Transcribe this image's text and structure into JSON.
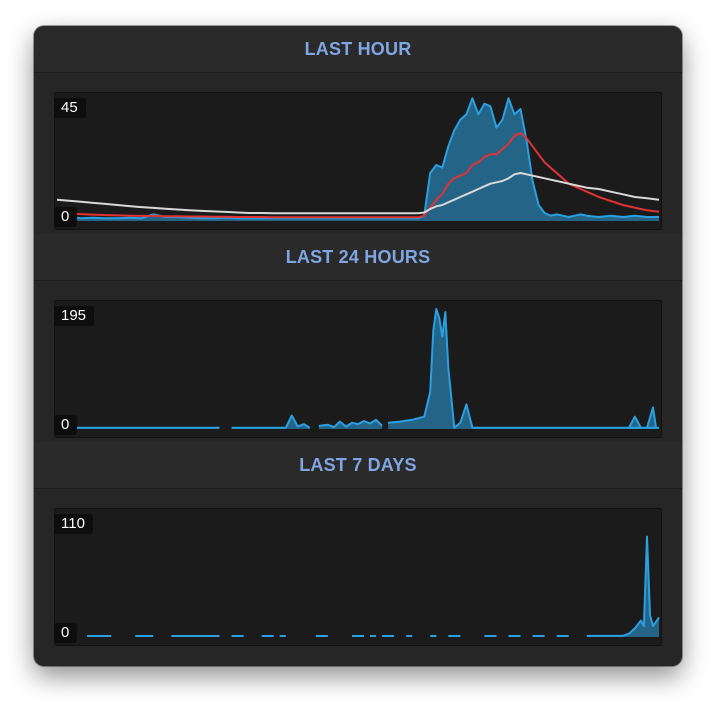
{
  "chart_data": [
    {
      "type": "area",
      "title": "LAST HOUR",
      "ylim": [
        0,
        45
      ],
      "y_labels": {
        "max": "45",
        "min": "0"
      },
      "x": [
        0,
        2,
        4,
        6,
        8,
        10,
        12,
        14,
        16,
        18,
        20,
        22,
        24,
        26,
        28,
        30,
        32,
        34,
        36,
        38,
        40,
        42,
        44,
        46,
        48,
        50,
        52,
        54,
        56,
        58,
        60,
        61,
        62,
        63,
        64,
        65,
        66,
        67,
        68,
        69,
        70,
        71,
        72,
        73,
        74,
        75,
        76,
        77,
        78,
        79,
        80,
        81,
        82,
        83,
        84,
        85,
        86,
        87,
        88,
        90,
        92,
        94,
        96,
        98,
        100
      ],
      "series": [
        {
          "color": "#2aa0e0",
          "values": [
            1,
            1.5,
            1,
            1.2,
            1,
            1,
            1.2,
            1,
            2.5,
            1.5,
            1.5,
            1.2,
            1,
            1,
            1.2,
            1,
            1,
            1,
            1,
            1,
            1,
            1,
            1,
            1,
            1,
            1,
            1,
            1,
            1,
            1,
            1,
            2,
            18,
            21,
            20,
            28,
            34,
            38,
            40,
            46,
            40,
            44,
            43,
            35,
            38,
            46,
            40,
            42,
            30,
            15,
            6,
            3,
            2,
            2.5,
            2,
            1.5,
            2,
            2.5,
            2,
            1.5,
            2,
            1.5,
            2,
            1.5,
            1.5
          ]
        },
        {
          "color": "#e03333",
          "values": [
            3,
            2.8,
            2.6,
            2.4,
            2.2,
            2.1,
            2,
            1.9,
            1.9,
            1.8,
            1.8,
            1.7,
            1.7,
            1.6,
            1.6,
            1.5,
            1.5,
            1.5,
            1.4,
            1.4,
            1.4,
            1.4,
            1.4,
            1.4,
            1.4,
            1.4,
            1.4,
            1.4,
            1.4,
            1.4,
            1.4,
            2,
            5,
            8,
            10,
            14,
            16,
            17,
            18,
            21,
            22,
            24,
            25,
            25,
            27,
            29,
            32,
            33,
            31,
            28,
            25,
            22,
            20,
            18,
            16,
            14,
            13,
            12,
            11,
            9,
            7.5,
            6,
            5,
            4,
            3.5
          ]
        },
        {
          "color": "#d8d8d8",
          "values": [
            8,
            7.6,
            7.2,
            6.8,
            6.4,
            6,
            5.6,
            5.2,
            4.9,
            4.6,
            4.3,
            4,
            3.8,
            3.6,
            3.4,
            3.2,
            3,
            3,
            2.9,
            2.9,
            2.9,
            2.9,
            2.9,
            2.9,
            2.9,
            2.9,
            2.9,
            2.9,
            2.9,
            2.9,
            2.9,
            3.2,
            4.5,
            5.5,
            6,
            7,
            8,
            9,
            10,
            11,
            12,
            13,
            14,
            14.5,
            15,
            16,
            17.5,
            18,
            17.5,
            17,
            16.5,
            16,
            15.5,
            15,
            14.5,
            14,
            13.5,
            13,
            12.5,
            12,
            11,
            10,
            9,
            8.5,
            8
          ]
        }
      ]
    },
    {
      "type": "area",
      "title": "LAST 24 HOURS",
      "ylim": [
        0,
        195
      ],
      "y_labels": {
        "max": "195",
        "min": "0"
      },
      "series": [
        {
          "color": "#2aa0e0",
          "segments": [
            {
              "x": [
                0,
                27
              ],
              "values": [
                2,
                2
              ]
            },
            {
              "x": [
                29,
                38,
                39,
                40,
                41,
                42
              ],
              "values": [
                2,
                2,
                22,
                4,
                8,
                2
              ]
            },
            {
              "x": [
                43.5,
                45,
                46,
                47,
                48,
                49,
                50,
                51,
                52,
                53,
                54
              ],
              "values": [
                5,
                7,
                3,
                12,
                4,
                10,
                8,
                13,
                9,
                15,
                5
              ]
            },
            {
              "x": [
                55,
                57,
                59,
                61,
                62,
                62.5,
                63,
                63.5,
                64,
                64.5,
                65,
                66,
                67,
                68,
                69,
                100
              ],
              "values": [
                10,
                12,
                15,
                20,
                60,
                160,
                195,
                180,
                150,
                190,
                100,
                2,
                10,
                40,
                2,
                2
              ]
            }
          ],
          "spikes": [
            {
              "x": [
                95,
                96,
                97
              ],
              "values": [
                2,
                20,
                2
              ]
            },
            {
              "x": [
                98,
                99,
                99.5
              ],
              "values": [
                2,
                35,
                2
              ]
            }
          ]
        }
      ]
    },
    {
      "type": "area",
      "title": "LAST 7 DAYS",
      "ylim": [
        0,
        110
      ],
      "y_labels": {
        "max": "110",
        "min": "0"
      },
      "series": [
        {
          "color": "#2aa0e0",
          "dashes": [
            [
              5,
              9
            ],
            [
              13,
              16
            ],
            [
              19,
              27
            ],
            [
              29,
              31
            ],
            [
              34,
              36
            ],
            [
              37,
              38
            ],
            [
              43,
              45
            ],
            [
              49,
              51
            ],
            [
              52,
              53
            ],
            [
              54,
              56
            ],
            [
              58,
              59
            ],
            [
              62,
              63
            ],
            [
              65,
              67
            ],
            [
              71,
              73
            ],
            [
              75,
              77
            ],
            [
              79,
              81
            ],
            [
              83,
              85
            ]
          ],
          "peak": {
            "x": [
              88,
              90,
              92,
              94,
              95,
              96,
              97,
              97.5,
              98,
              98.5,
              99,
              100
            ],
            "values": [
              1,
              1,
              1,
              1,
              3,
              8,
              15,
              10,
              92,
              20,
              10,
              18
            ]
          }
        }
      ]
    }
  ]
}
